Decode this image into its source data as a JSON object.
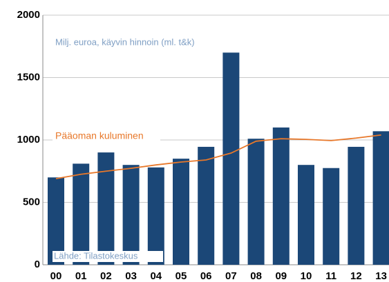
{
  "chart_data": {
    "type": "bar",
    "annotations": [
      "Milj. euroa, käyvin hinnoin (ml. t&k)",
      "Lähde: Tilastokeskus"
    ],
    "categories": [
      "00",
      "01",
      "02",
      "03",
      "04",
      "05",
      "06",
      "07",
      "08",
      "09",
      "10",
      "11",
      "12",
      "13"
    ],
    "series": [
      {
        "type": "bar",
        "color": "#1b4777",
        "values": [
          700,
          810,
          900,
          800,
          780,
          850,
          945,
          1700,
          1010,
          1100,
          800,
          775,
          945,
          1070
        ]
      },
      {
        "type": "line",
        "name": "Pääoman kuluminen",
        "color": "#e8782a",
        "values": [
          690,
          725,
          750,
          773,
          800,
          823,
          840,
          895,
          990,
          1010,
          1005,
          995,
          1015,
          1040
        ]
      }
    ],
    "ylim": [
      0,
      2000
    ],
    "yticks": [
      0,
      500,
      1000,
      1500,
      2000
    ],
    "grid": true
  }
}
